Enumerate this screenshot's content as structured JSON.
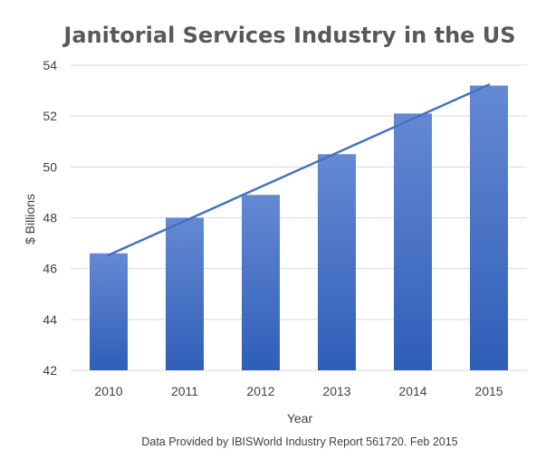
{
  "chart_data": {
    "type": "bar",
    "title": "Janitorial Services Industry in the US",
    "xlabel": "Year",
    "ylabel": "$ Billions",
    "categories": [
      "2010",
      "2011",
      "2012",
      "2013",
      "2014",
      "2015"
    ],
    "values": [
      46.6,
      48.0,
      48.9,
      50.5,
      52.1,
      53.2
    ],
    "ylim": [
      42,
      54
    ],
    "yticks": [
      "42",
      "44",
      "46",
      "48",
      "50",
      "52",
      "54"
    ],
    "grid": true,
    "legend": "none",
    "trendline": "linear",
    "bar_color": "#4472c4",
    "trend_color": "#4472c4",
    "source_note": "Data Provided by IBISWorld Industry Report 561720. Feb 2015"
  }
}
